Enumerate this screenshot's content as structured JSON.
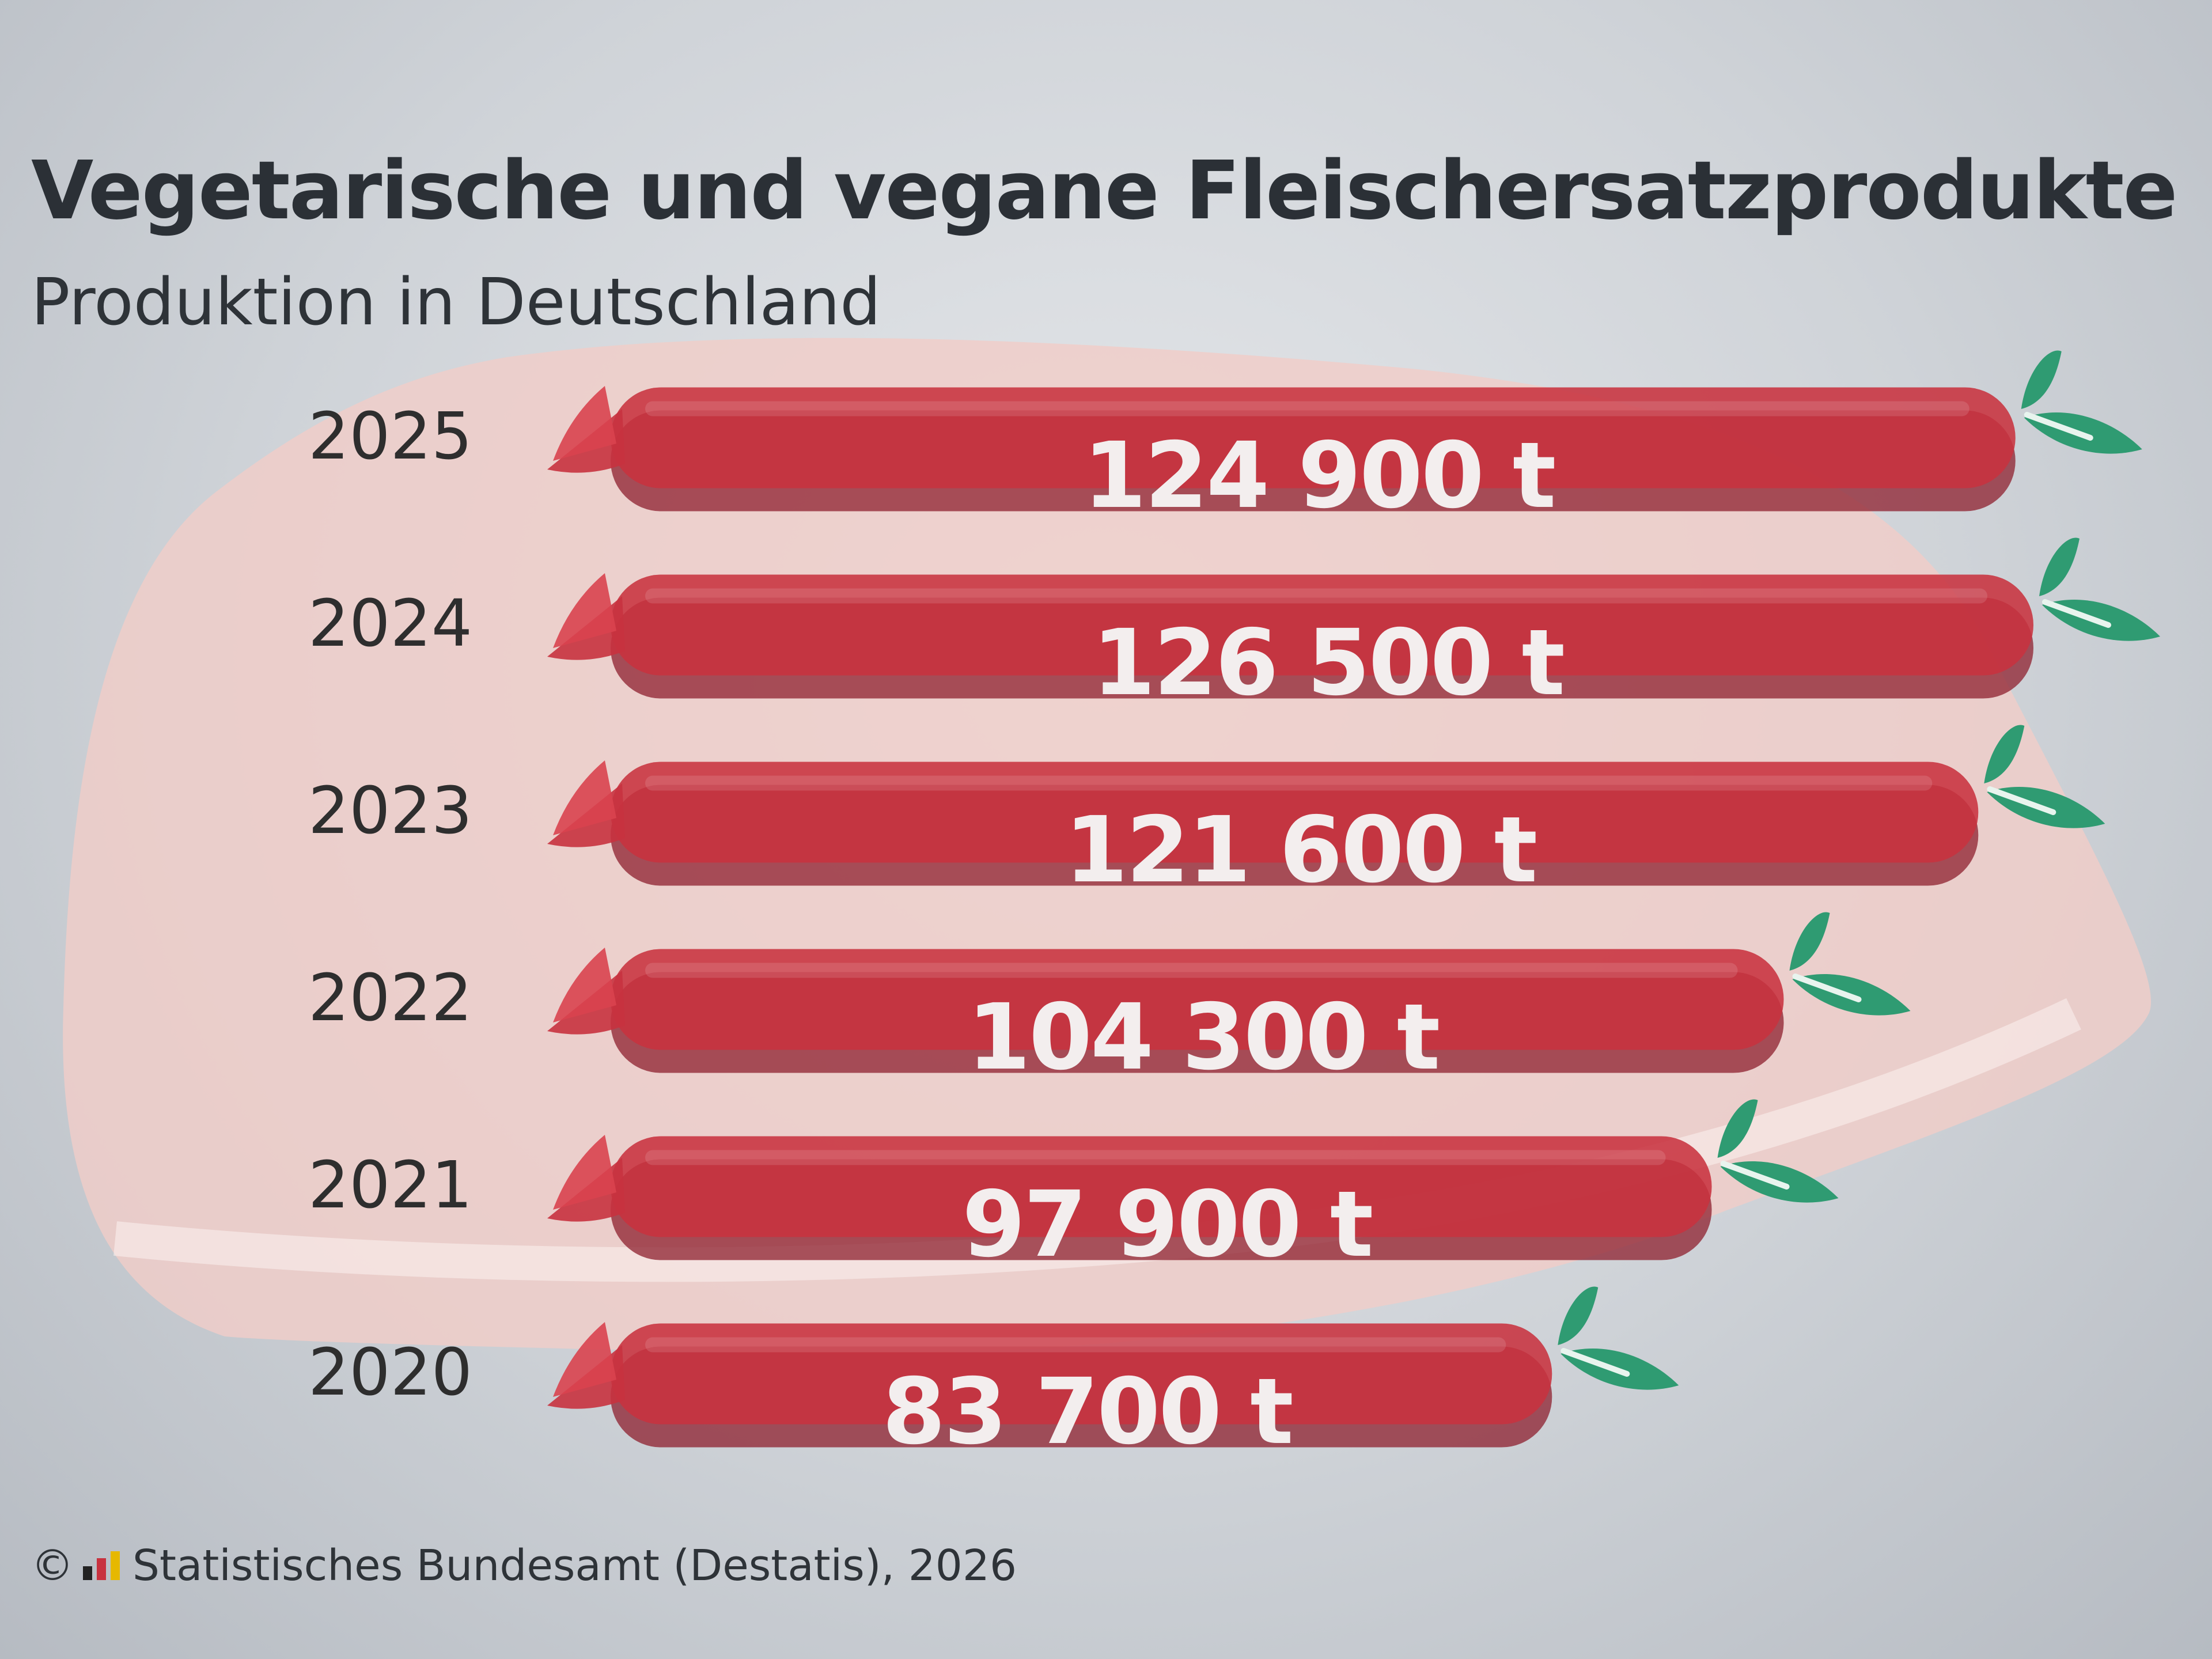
{
  "title": "Vegetarische und vegane Fleischersatzprodukte",
  "subtitle": "Produktion in Deutschland",
  "footer": {
    "copyright": "©",
    "source": "Statistisches Bundesamt (Destatis), 2026"
  },
  "colors": {
    "sausage": "#c8323f",
    "sausage_shadow": "#8e1f2e",
    "leaf": "#2f9b72",
    "meat": "#f0cdc8",
    "value_text": "#f3eeee"
  },
  "chart_data": {
    "type": "bar",
    "orientation": "horizontal",
    "categories": [
      "2025",
      "2024",
      "2023",
      "2022",
      "2021",
      "2020"
    ],
    "values": [
      124900,
      126500,
      121600,
      104300,
      97900,
      83700
    ],
    "labels": [
      "124 900 t",
      "126 500 t",
      "121 600 t",
      "104 300 t",
      "97 900 t",
      "83 700 t"
    ],
    "unit": "t",
    "title": "Vegetarische und vegane Fleischersatzprodukte",
    "subtitle": "Produktion in Deutschland",
    "xlabel": "",
    "ylabel": "",
    "grid": false,
    "legend": "none"
  }
}
